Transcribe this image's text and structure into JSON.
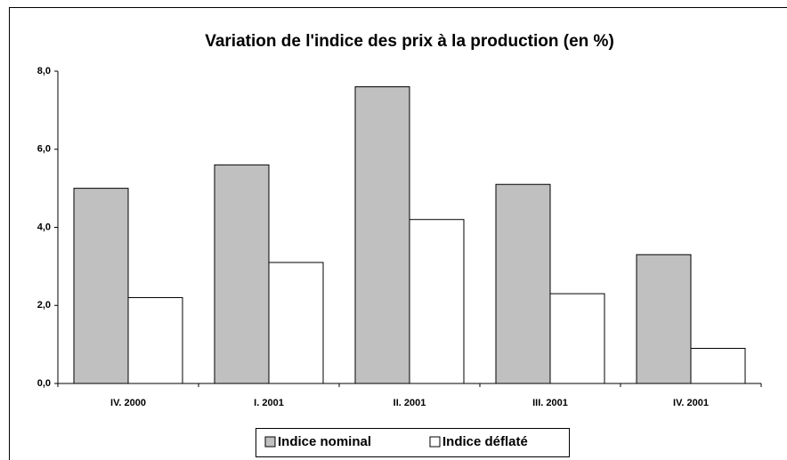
{
  "chart_data": {
    "type": "bar",
    "title": "Variation de l'indice des prix à la production (en %)",
    "categories": [
      "IV. 2000",
      "I. 2001",
      "II. 2001",
      "III. 2001",
      "IV. 2001"
    ],
    "series": [
      {
        "name": "Indice nominal",
        "color": "#c0c0c0",
        "values": [
          5.0,
          5.6,
          7.6,
          5.1,
          3.3
        ]
      },
      {
        "name": "Indice déflaté",
        "color": "#ffffff",
        "values": [
          2.2,
          3.1,
          4.2,
          2.3,
          0.9
        ]
      }
    ],
    "ylim": [
      0,
      8
    ],
    "yticks": [
      {
        "value": 0,
        "label": "0,0"
      },
      {
        "value": 2,
        "label": "2,0"
      },
      {
        "value": 4,
        "label": "4,0"
      },
      {
        "value": 6,
        "label": "6,0"
      },
      {
        "value": 8,
        "label": "8,0"
      }
    ],
    "grid": false,
    "legend": "bottom"
  }
}
